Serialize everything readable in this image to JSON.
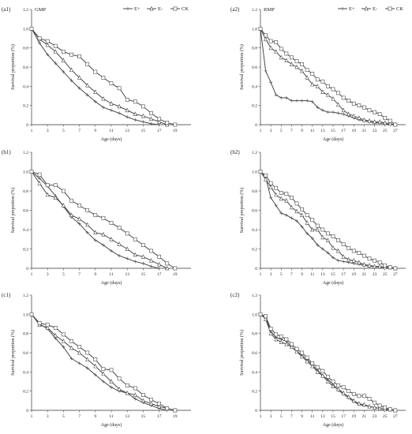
{
  "chart_data": [
    {
      "type": "line",
      "panel_label": "(a1)",
      "title": "GMP",
      "legend": [
        "E+",
        "E-",
        "CK"
      ],
      "legend_position": "top-right",
      "xlabel": "Age  (days)",
      "ylabel": "Survival proportion (%)",
      "xlim": [
        1,
        21
      ],
      "ylim": [
        0,
        1.2
      ],
      "xticks": [
        1,
        3,
        5,
        7,
        9,
        11,
        13,
        15,
        17,
        19
      ],
      "yticks": [
        "0",
        "0.2",
        "0.4",
        "0.6",
        "0.8",
        "1.0",
        "1.2"
      ],
      "series": [
        {
          "name": "E+",
          "marker": "plus",
          "x": [
            1,
            2,
            3,
            4,
            5,
            6,
            7,
            8,
            9,
            10,
            11,
            12,
            13,
            14,
            15,
            16,
            17
          ],
          "values": [
            1.0,
            0.85,
            0.73,
            0.64,
            0.55,
            0.46,
            0.38,
            0.31,
            0.24,
            0.18,
            0.15,
            0.12,
            0.08,
            0.05,
            0.03,
            0.01,
            0.0
          ]
        },
        {
          "name": "E-",
          "marker": "triangle",
          "x": [
            1,
            2,
            3,
            4,
            5,
            6,
            7,
            8,
            9,
            10,
            11,
            12,
            13,
            14,
            15,
            16,
            17,
            18
          ],
          "values": [
            1.0,
            0.89,
            0.83,
            0.76,
            0.67,
            0.57,
            0.49,
            0.41,
            0.34,
            0.27,
            0.22,
            0.19,
            0.15,
            0.11,
            0.09,
            0.06,
            0.03,
            0.0
          ]
        },
        {
          "name": "CK",
          "marker": "square",
          "x": [
            1,
            2,
            3,
            4,
            5,
            6,
            7,
            8,
            9,
            10,
            11,
            12,
            13,
            14,
            15,
            16,
            17,
            18,
            19
          ],
          "values": [
            1.0,
            0.9,
            0.87,
            0.82,
            0.76,
            0.73,
            0.71,
            0.63,
            0.55,
            0.49,
            0.43,
            0.38,
            0.26,
            0.24,
            0.19,
            0.12,
            0.06,
            0.02,
            0.0
          ]
        }
      ]
    },
    {
      "type": "line",
      "panel_label": "(a2)",
      "title": "RMP",
      "legend": [
        "E+",
        "E-",
        "CK"
      ],
      "legend_position": "top-right",
      "xlabel": "Age  (days)",
      "ylabel": "Survival proportion (%)",
      "xlim": [
        1,
        29
      ],
      "ylim": [
        0,
        1.2
      ],
      "xticks": [
        1,
        3,
        5,
        7,
        9,
        11,
        13,
        15,
        17,
        19,
        21,
        23,
        25,
        27
      ],
      "yticks": [
        "0",
        "0.2",
        "0.4",
        "0.6",
        "0.8",
        "1.0",
        "1.2"
      ],
      "series": [
        {
          "name": "E+",
          "marker": "plus",
          "x": [
            1,
            2,
            3,
            4,
            5,
            6,
            7,
            8,
            9,
            10,
            11,
            12,
            13,
            14,
            15,
            16,
            17,
            18,
            19,
            20,
            21,
            22,
            23,
            24,
            25,
            26,
            27
          ],
          "values": [
            1.0,
            0.56,
            0.44,
            0.31,
            0.28,
            0.28,
            0.25,
            0.25,
            0.25,
            0.25,
            0.24,
            0.18,
            0.15,
            0.13,
            0.13,
            0.12,
            0.11,
            0.09,
            0.07,
            0.05,
            0.04,
            0.03,
            0.02,
            0.02,
            0.01,
            0.0,
            0.0
          ]
        },
        {
          "name": "E-",
          "marker": "triangle",
          "x": [
            1,
            2,
            3,
            4,
            5,
            6,
            7,
            8,
            9,
            10,
            11,
            12,
            13,
            14,
            15,
            16,
            17,
            18,
            19,
            20,
            21,
            22,
            23,
            24,
            25,
            26,
            27
          ],
          "values": [
            1.0,
            0.89,
            0.8,
            0.76,
            0.7,
            0.67,
            0.63,
            0.6,
            0.56,
            0.49,
            0.42,
            0.4,
            0.34,
            0.31,
            0.27,
            0.21,
            0.15,
            0.11,
            0.09,
            0.07,
            0.05,
            0.04,
            0.03,
            0.03,
            0.02,
            0.01,
            0.0
          ]
        },
        {
          "name": "CK",
          "marker": "square",
          "x": [
            1,
            2,
            3,
            4,
            5,
            6,
            7,
            8,
            9,
            10,
            11,
            12,
            13,
            14,
            15,
            16,
            17,
            18,
            19,
            20,
            21,
            22,
            23,
            24,
            25,
            26,
            27
          ],
          "values": [
            1.0,
            0.93,
            0.87,
            0.86,
            0.79,
            0.74,
            0.7,
            0.66,
            0.63,
            0.57,
            0.53,
            0.47,
            0.45,
            0.4,
            0.37,
            0.33,
            0.28,
            0.25,
            0.22,
            0.2,
            0.18,
            0.15,
            0.13,
            0.11,
            0.07,
            0.04,
            0.0
          ]
        }
      ]
    },
    {
      "type": "line",
      "panel_label": "(b1)",
      "title": "",
      "legend": [],
      "xlabel": "Age  (days)",
      "ylabel": "Survival proportion (%)",
      "xlim": [
        1,
        21
      ],
      "ylim": [
        0,
        1.2
      ],
      "xticks": [
        1,
        3,
        5,
        7,
        9,
        11,
        13,
        15,
        17,
        19
      ],
      "yticks": [
        "0",
        "0.2",
        "0.4",
        "0.6",
        "0.8",
        "1.0",
        "1.2"
      ],
      "series": [
        {
          "name": "E+",
          "marker": "plus",
          "x": [
            1,
            2,
            3,
            4,
            5,
            6,
            7,
            8,
            9,
            10,
            11,
            12,
            13,
            14,
            15,
            16,
            17
          ],
          "values": [
            1.0,
            0.93,
            0.85,
            0.75,
            0.64,
            0.53,
            0.46,
            0.37,
            0.29,
            0.24,
            0.18,
            0.13,
            0.1,
            0.07,
            0.05,
            0.02,
            0.0
          ]
        },
        {
          "name": "E-",
          "marker": "triangle",
          "x": [
            1,
            2,
            3,
            4,
            5,
            6,
            7,
            8,
            9,
            10,
            11,
            12,
            13,
            14,
            15,
            16,
            17,
            18
          ],
          "values": [
            1.0,
            0.88,
            0.76,
            0.73,
            0.65,
            0.55,
            0.51,
            0.45,
            0.37,
            0.35,
            0.3,
            0.25,
            0.2,
            0.14,
            0.12,
            0.08,
            0.04,
            0.0
          ]
        },
        {
          "name": "CK",
          "marker": "square",
          "x": [
            1,
            2,
            3,
            4,
            5,
            6,
            7,
            8,
            9,
            10,
            11,
            12,
            13,
            14,
            15,
            16,
            17,
            18,
            19
          ],
          "values": [
            1.0,
            0.97,
            0.86,
            0.86,
            0.8,
            0.7,
            0.65,
            0.6,
            0.55,
            0.52,
            0.47,
            0.42,
            0.36,
            0.3,
            0.24,
            0.18,
            0.12,
            0.05,
            0.0
          ]
        }
      ]
    },
    {
      "type": "line",
      "panel_label": "(b2)",
      "title": "",
      "legend": [],
      "xlabel": "Age  (days)",
      "ylabel": "Survival proportion (%)",
      "xlim": [
        1,
        29
      ],
      "ylim": [
        0,
        1.2
      ],
      "xticks": [
        1,
        3,
        5,
        7,
        9,
        11,
        13,
        15,
        17,
        19,
        21,
        23,
        25,
        27
      ],
      "yticks": [
        "0",
        "0.2",
        "0.4",
        "0.6",
        "0.8",
        "1.0",
        "1.2"
      ],
      "series": [
        {
          "name": "E+",
          "marker": "plus",
          "x": [
            1,
            2,
            3,
            4,
            5,
            6,
            7,
            8,
            9,
            10,
            11,
            12,
            13,
            14,
            15,
            16,
            17,
            18,
            19,
            20,
            21,
            22,
            23,
            24,
            25,
            26,
            27
          ],
          "values": [
            1.0,
            0.94,
            0.73,
            0.65,
            0.57,
            0.55,
            0.52,
            0.49,
            0.43,
            0.36,
            0.31,
            0.24,
            0.2,
            0.16,
            0.11,
            0.08,
            0.07,
            0.06,
            0.05,
            0.04,
            0.03,
            0.02,
            0.02,
            0.01,
            0.01,
            0.0,
            0.0
          ]
        },
        {
          "name": "E-",
          "marker": "triangle",
          "x": [
            1,
            2,
            3,
            4,
            5,
            6,
            7,
            8,
            9,
            10,
            11,
            12,
            13,
            14,
            15,
            16,
            17,
            18,
            19,
            20,
            21,
            22,
            23,
            24,
            25,
            26,
            27
          ],
          "values": [
            1.0,
            0.92,
            0.84,
            0.76,
            0.72,
            0.7,
            0.63,
            0.59,
            0.55,
            0.47,
            0.4,
            0.4,
            0.32,
            0.29,
            0.21,
            0.18,
            0.12,
            0.09,
            0.08,
            0.06,
            0.04,
            0.03,
            0.02,
            0.02,
            0.01,
            0.01,
            0.0
          ]
        },
        {
          "name": "CK",
          "marker": "square",
          "x": [
            1,
            2,
            3,
            4,
            5,
            6,
            7,
            8,
            9,
            10,
            11,
            12,
            13,
            14,
            15,
            16,
            17,
            18,
            19,
            20,
            21,
            22,
            23,
            24,
            25,
            26,
            27
          ],
          "values": [
            1.0,
            0.96,
            0.88,
            0.83,
            0.78,
            0.77,
            0.73,
            0.67,
            0.61,
            0.55,
            0.5,
            0.44,
            0.4,
            0.36,
            0.33,
            0.29,
            0.25,
            0.21,
            0.18,
            0.16,
            0.13,
            0.1,
            0.08,
            0.06,
            0.03,
            0.01,
            0.0
          ]
        }
      ]
    },
    {
      "type": "line",
      "panel_label": "(c1)",
      "title": "",
      "legend": [],
      "xlabel": "Age  (days)",
      "ylabel": "Survival proportion (%)",
      "xlim": [
        1,
        21
      ],
      "ylim": [
        0,
        1.2
      ],
      "xticks": [
        1,
        3,
        5,
        7,
        9,
        11,
        13,
        15,
        17,
        19
      ],
      "yticks": [
        "0",
        "0.2",
        "0.4",
        "0.6",
        "0.8",
        "1.0",
        "1.2"
      ],
      "series": [
        {
          "name": "E+",
          "marker": "plus",
          "x": [
            1,
            2,
            3,
            4,
            5,
            6,
            7,
            8,
            9,
            10,
            11,
            12,
            13,
            14,
            15,
            16,
            17,
            18
          ],
          "values": [
            1.0,
            0.9,
            0.85,
            0.75,
            0.66,
            0.54,
            0.49,
            0.44,
            0.37,
            0.3,
            0.24,
            0.2,
            0.18,
            0.12,
            0.08,
            0.05,
            0.02,
            0.0
          ]
        },
        {
          "name": "E-",
          "marker": "triangle",
          "x": [
            1,
            2,
            3,
            4,
            5,
            6,
            7,
            8,
            9,
            10,
            11,
            12,
            13,
            14,
            15,
            16,
            17,
            18,
            19
          ],
          "values": [
            1.0,
            0.89,
            0.86,
            0.78,
            0.72,
            0.65,
            0.6,
            0.53,
            0.46,
            0.38,
            0.3,
            0.22,
            0.18,
            0.16,
            0.1,
            0.07,
            0.04,
            0.02,
            0.0
          ]
        },
        {
          "name": "CK",
          "marker": "square",
          "x": [
            1,
            2,
            3,
            4,
            5,
            6,
            7,
            8,
            9,
            10,
            11,
            12,
            13,
            14,
            15,
            16,
            17,
            18,
            19
          ],
          "values": [
            1.0,
            0.91,
            0.89,
            0.86,
            0.79,
            0.72,
            0.66,
            0.6,
            0.53,
            0.43,
            0.42,
            0.33,
            0.26,
            0.23,
            0.16,
            0.11,
            0.07,
            0.02,
            0.0
          ]
        }
      ]
    },
    {
      "type": "line",
      "panel_label": "(c2)",
      "title": "",
      "legend": [],
      "xlabel": "Age  (days)",
      "ylabel": "Survival proportion (%)",
      "xlim": [
        1,
        29
      ],
      "ylim": [
        0,
        1.2
      ],
      "xticks": [
        1,
        3,
        5,
        7,
        9,
        11,
        13,
        15,
        17,
        19,
        21,
        23,
        25,
        27
      ],
      "yticks": [
        "0",
        "0.2",
        "0.4",
        "0.6",
        "0.8",
        "1.0",
        "1.2"
      ],
      "series": [
        {
          "name": "E+",
          "marker": "plus",
          "x": [
            1,
            2,
            3,
            4,
            5,
            6,
            7,
            8,
            9,
            10,
            11,
            12,
            13,
            14,
            15,
            16,
            17,
            18,
            19,
            20,
            21,
            22,
            23,
            24,
            25,
            26,
            27
          ],
          "values": [
            1.0,
            0.97,
            0.82,
            0.76,
            0.74,
            0.72,
            0.66,
            0.62,
            0.57,
            0.53,
            0.47,
            0.42,
            0.36,
            0.32,
            0.27,
            0.21,
            0.17,
            0.13,
            0.09,
            0.06,
            0.05,
            0.04,
            0.03,
            0.02,
            0.01,
            0.0,
            0.0
          ]
        },
        {
          "name": "E-",
          "marker": "triangle",
          "x": [
            1,
            2,
            3,
            4,
            5,
            6,
            7,
            8,
            9,
            10,
            11,
            12,
            13,
            14,
            15,
            16,
            17,
            18,
            19,
            20,
            21,
            22,
            23,
            24,
            25,
            26,
            27
          ],
          "values": [
            1.0,
            0.95,
            0.8,
            0.74,
            0.71,
            0.69,
            0.66,
            0.61,
            0.56,
            0.51,
            0.46,
            0.4,
            0.36,
            0.3,
            0.25,
            0.22,
            0.18,
            0.14,
            0.1,
            0.07,
            0.06,
            0.04,
            0.03,
            0.02,
            0.01,
            0.01,
            0.0
          ]
        },
        {
          "name": "CK",
          "marker": "square",
          "x": [
            1,
            2,
            3,
            4,
            5,
            6,
            7,
            8,
            9,
            10,
            11,
            12,
            13,
            14,
            15,
            16,
            17,
            18,
            19,
            20,
            21,
            22,
            23,
            24,
            25,
            26,
            27
          ],
          "values": [
            1.0,
            0.98,
            0.85,
            0.79,
            0.77,
            0.74,
            0.69,
            0.64,
            0.6,
            0.55,
            0.49,
            0.45,
            0.41,
            0.35,
            0.3,
            0.26,
            0.24,
            0.2,
            0.17,
            0.15,
            0.15,
            0.12,
            0.08,
            0.05,
            0.03,
            0.01,
            0.0
          ]
        }
      ]
    }
  ]
}
